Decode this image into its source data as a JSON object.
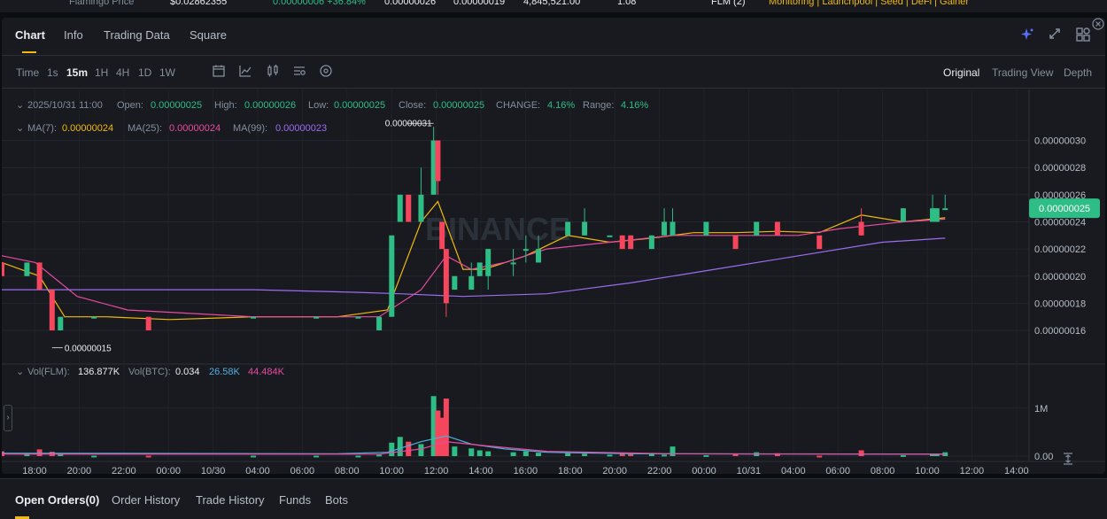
{
  "top_strip": {
    "price_label": "Flamingo Price",
    "price": "$0.02862355",
    "change": "0.00000006 +36.84%",
    "high": "0.00000026",
    "low": "0.00000019",
    "volume": "4,845,521.00",
    "vol2": "1.08",
    "pair": "FLM (2)",
    "tags": "Monitoring | Launchpool | Seed | DeFi | Gainer"
  },
  "tabs": [
    "Chart",
    "Info",
    "Trading Data",
    "Square"
  ],
  "toolbar": {
    "intervals": [
      "Time",
      "1s",
      "15m",
      "1H",
      "4H",
      "1D",
      "1W"
    ],
    "active_interval": "15m",
    "views": [
      "Original",
      "Trading View",
      "Depth"
    ],
    "active_view": "Original"
  },
  "ohlc_legend": {
    "datetime": "2025/10/31 11:00",
    "open_label": "Open:",
    "open": "0.00000025",
    "high_label": "High:",
    "high": "0.00000026",
    "low_label": "Low:",
    "low": "0.00000025",
    "close_label": "Close:",
    "close": "0.00000025",
    "change_label": "CHANGE:",
    "change": "4.16%",
    "range_label": "Range:",
    "range": "4.16%"
  },
  "ma_legend": {
    "ma7_label": "MA(7):",
    "ma7": "0.00000024",
    "ma25_label": "MA(25):",
    "ma25": "0.00000024",
    "ma99_label": "MA(99):",
    "ma99": "0.00000023"
  },
  "vol_legend": {
    "flm_label": "Vol(FLM):",
    "flm": "136.877K",
    "btc_label": "Vol(BTC):",
    "btc": "0.034",
    "v1": "26.58K",
    "v2": "44.484K"
  },
  "watermark": "BINANCE",
  "bottom_tabs": [
    "Open Orders(0)",
    "Order History",
    "Trade History",
    "Funds",
    "Bots"
  ],
  "colors": {
    "up": "#2ebd85",
    "down": "#f6465d",
    "ma7": "#f0b90b",
    "ma25": "#e94aa2",
    "ma99": "#9d6cf2",
    "badge": "#2ebd85"
  },
  "chart_data": {
    "type": "candlestick",
    "price_axis": {
      "ticks": [
        "0.00000030",
        "0.00000028",
        "0.00000026",
        "0.00000024",
        "0.00000022",
        "0.00000020",
        "0.00000018",
        "0.00000016"
      ],
      "ylim": [
        1.45e-07,
        3.18e-07
      ]
    },
    "volume_axis": {
      "ticks": [
        "1M",
        "0.00"
      ],
      "ylim": [
        0,
        1550000
      ]
    },
    "x_ticks": [
      "18:00",
      "20:00",
      "22:00",
      "00:00",
      "10/30",
      "04:00",
      "06:00",
      "08:00",
      "10:00",
      "12:00",
      "14:00",
      "16:00",
      "18:00",
      "20:00",
      "22:00",
      "00:00",
      "10/31",
      "04:00",
      "06:00",
      "08:00",
      "10:00",
      "12:00",
      "14:00"
    ],
    "x_start": 0,
    "x_end": 226,
    "current_price": "0.00000025",
    "high_marker": "0.00000031",
    "low_marker": "0.00000015",
    "candles": [
      [
        0,
        2.1e-07,
        2.1e-07,
        2e-07,
        2e-07,
        100000
      ],
      [
        6,
        2e-07,
        2.1e-07,
        2e-07,
        2.1e-07,
        60000
      ],
      [
        9,
        2.1e-07,
        2.1e-07,
        1.9e-07,
        1.9e-07,
        140000
      ],
      [
        12,
        1.9e-07,
        1.9e-07,
        1.6e-07,
        1.6e-07,
        90000
      ],
      [
        14,
        1.6e-07,
        1.7e-07,
        1.6e-07,
        1.7e-07,
        40000
      ],
      [
        22,
        1.7e-07,
        1.7e-07,
        1.7e-07,
        1.7e-07,
        10000
      ],
      [
        35,
        1.7e-07,
        1.7e-07,
        1.6e-07,
        1.6e-07,
        10000
      ],
      [
        60,
        1.7e-07,
        1.7e-07,
        1.7e-07,
        1.7e-07,
        10000
      ],
      [
        75,
        1.7e-07,
        1.7e-07,
        1.7e-07,
        1.7e-07,
        10000
      ],
      [
        85,
        1.7e-07,
        1.7e-07,
        1.7e-07,
        1.7e-07,
        10000
      ],
      [
        90,
        1.6e-07,
        1.7e-07,
        1.6e-07,
        1.7e-07,
        30000
      ],
      [
        93,
        1.7e-07,
        2.3e-07,
        1.7e-07,
        2.3e-07,
        280000
      ],
      [
        95,
        2.4e-07,
        2.6e-07,
        2.4e-07,
        2.6e-07,
        400000
      ],
      [
        97,
        2.6e-07,
        2.6e-07,
        2.4e-07,
        2.4e-07,
        300000
      ],
      [
        100,
        2.4e-07,
        2.8e-07,
        2.4e-07,
        2.6e-07,
        250000
      ],
      [
        103,
        2.6e-07,
        3.1e-07,
        2.6e-07,
        3e-07,
        1250000
      ],
      [
        104,
        3e-07,
        3e-07,
        2.6e-07,
        2.7e-07,
        950000
      ],
      [
        105,
        2.4e-07,
        2.4e-07,
        2.2e-07,
        2.2e-07,
        800000
      ],
      [
        106,
        2.2e-07,
        2.2e-07,
        1.7e-07,
        1.8e-07,
        1200000
      ],
      [
        108,
        1.9e-07,
        2e-07,
        1.9e-07,
        2e-07,
        200000
      ],
      [
        112,
        1.9e-07,
        2.1e-07,
        1.9e-07,
        2e-07,
        160000
      ],
      [
        114,
        2e-07,
        2.1e-07,
        2e-07,
        2.1e-07,
        120000
      ],
      [
        116,
        2e-07,
        2.2e-07,
        1.9e-07,
        2.2e-07,
        100000
      ],
      [
        122,
        2.1e-07,
        2.2e-07,
        2e-07,
        2.1e-07,
        80000
      ],
      [
        125,
        2.2e-07,
        2.3e-07,
        2.1e-07,
        2.2e-07,
        100000
      ],
      [
        128,
        2.1e-07,
        2.3e-07,
        2.1e-07,
        2.2e-07,
        70000
      ],
      [
        135,
        2.3e-07,
        2.4e-07,
        2.3e-07,
        2.4e-07,
        60000
      ],
      [
        139,
        2.3e-07,
        2.5e-07,
        2.3e-07,
        2.4e-07,
        50000
      ],
      [
        145,
        2.3e-07,
        2.3e-07,
        2.3e-07,
        2.3e-07,
        30000
      ],
      [
        148,
        2.3e-07,
        2.3e-07,
        2.2e-07,
        2.2e-07,
        50000
      ],
      [
        150,
        2.3e-07,
        2.3e-07,
        2.2e-07,
        2.2e-07,
        40000
      ],
      [
        155,
        2.2e-07,
        2.3e-07,
        2.2e-07,
        2.3e-07,
        60000
      ],
      [
        158,
        2.3e-07,
        2.5e-07,
        2.3e-07,
        2.4e-07,
        30000
      ],
      [
        160,
        2.3e-07,
        2.5e-07,
        2.3e-07,
        2.4e-07,
        200000
      ],
      [
        168,
        2.3e-07,
        2.4e-07,
        2.3e-07,
        2.4e-07,
        20000
      ],
      [
        175,
        2.3e-07,
        2.3e-07,
        2.2e-07,
        2.2e-07,
        40000
      ],
      [
        180,
        2.3e-07,
        2.4e-07,
        2.3e-07,
        2.4e-07,
        80000
      ],
      [
        185,
        2.4e-07,
        2.4e-07,
        2.3e-07,
        2.3e-07,
        60000
      ],
      [
        195,
        2.3e-07,
        2.3e-07,
        2.2e-07,
        2.2e-07,
        10000
      ],
      [
        205,
        2.4e-07,
        2.5e-07,
        2.3e-07,
        2.3e-07,
        120000
      ],
      [
        215,
        2.4e-07,
        2.5e-07,
        2.4e-07,
        2.5e-07,
        20000
      ],
      [
        222,
        2.4e-07,
        2.6e-07,
        2.4e-07,
        2.5e-07,
        50000
      ],
      [
        223,
        2.4e-07,
        2.5e-07,
        2.4e-07,
        2.5e-07,
        40000
      ],
      [
        225,
        2.5e-07,
        2.6e-07,
        2.5e-07,
        2.5e-07,
        80000
      ]
    ],
    "series": [
      {
        "name": "MA(7)",
        "points": [
          [
            0,
            2.1e-07
          ],
          [
            9,
            2e-07
          ],
          [
            15,
            1.7e-07
          ],
          [
            25,
            1.7e-07
          ],
          [
            40,
            1.68e-07
          ],
          [
            60,
            1.7e-07
          ],
          [
            80,
            1.7e-07
          ],
          [
            92,
            1.75e-07
          ],
          [
            100,
            2.4e-07
          ],
          [
            104,
            2.55e-07
          ],
          [
            107,
            2.3e-07
          ],
          [
            110,
            2.05e-07
          ],
          [
            115,
            2.05e-07
          ],
          [
            125,
            2.15e-07
          ],
          [
            135,
            2.3e-07
          ],
          [
            145,
            2.25e-07
          ],
          [
            155,
            2.28e-07
          ],
          [
            165,
            2.32e-07
          ],
          [
            175,
            2.32e-07
          ],
          [
            185,
            2.33e-07
          ],
          [
            195,
            2.32e-07
          ],
          [
            205,
            2.45e-07
          ],
          [
            215,
            2.4e-07
          ],
          [
            225,
            2.43e-07
          ]
        ]
      },
      {
        "name": "MA(25)",
        "points": [
          [
            0,
            2.15e-07
          ],
          [
            8,
            2.1e-07
          ],
          [
            18,
            1.85e-07
          ],
          [
            30,
            1.75e-07
          ],
          [
            60,
            1.7e-07
          ],
          [
            90,
            1.7e-07
          ],
          [
            100,
            1.9e-07
          ],
          [
            106,
            2.15e-07
          ],
          [
            112,
            2.05e-07
          ],
          [
            120,
            2.1e-07
          ],
          [
            130,
            2.2e-07
          ],
          [
            145,
            2.25e-07
          ],
          [
            160,
            2.3e-07
          ],
          [
            175,
            2.3e-07
          ],
          [
            190,
            2.3e-07
          ],
          [
            200,
            2.35e-07
          ],
          [
            215,
            2.4e-07
          ],
          [
            225,
            2.42e-07
          ]
        ]
      },
      {
        "name": "MA(99)",
        "points": [
          [
            0,
            1.9e-07
          ],
          [
            30,
            1.9e-07
          ],
          [
            60,
            1.9e-07
          ],
          [
            85,
            1.88e-07
          ],
          [
            95,
            1.87e-07
          ],
          [
            110,
            1.85e-07
          ],
          [
            130,
            1.87e-07
          ],
          [
            150,
            1.95e-07
          ],
          [
            170,
            2.05e-07
          ],
          [
            190,
            2.15e-07
          ],
          [
            210,
            2.25e-07
          ],
          [
            225,
            2.28e-07
          ]
        ]
      }
    ]
  }
}
